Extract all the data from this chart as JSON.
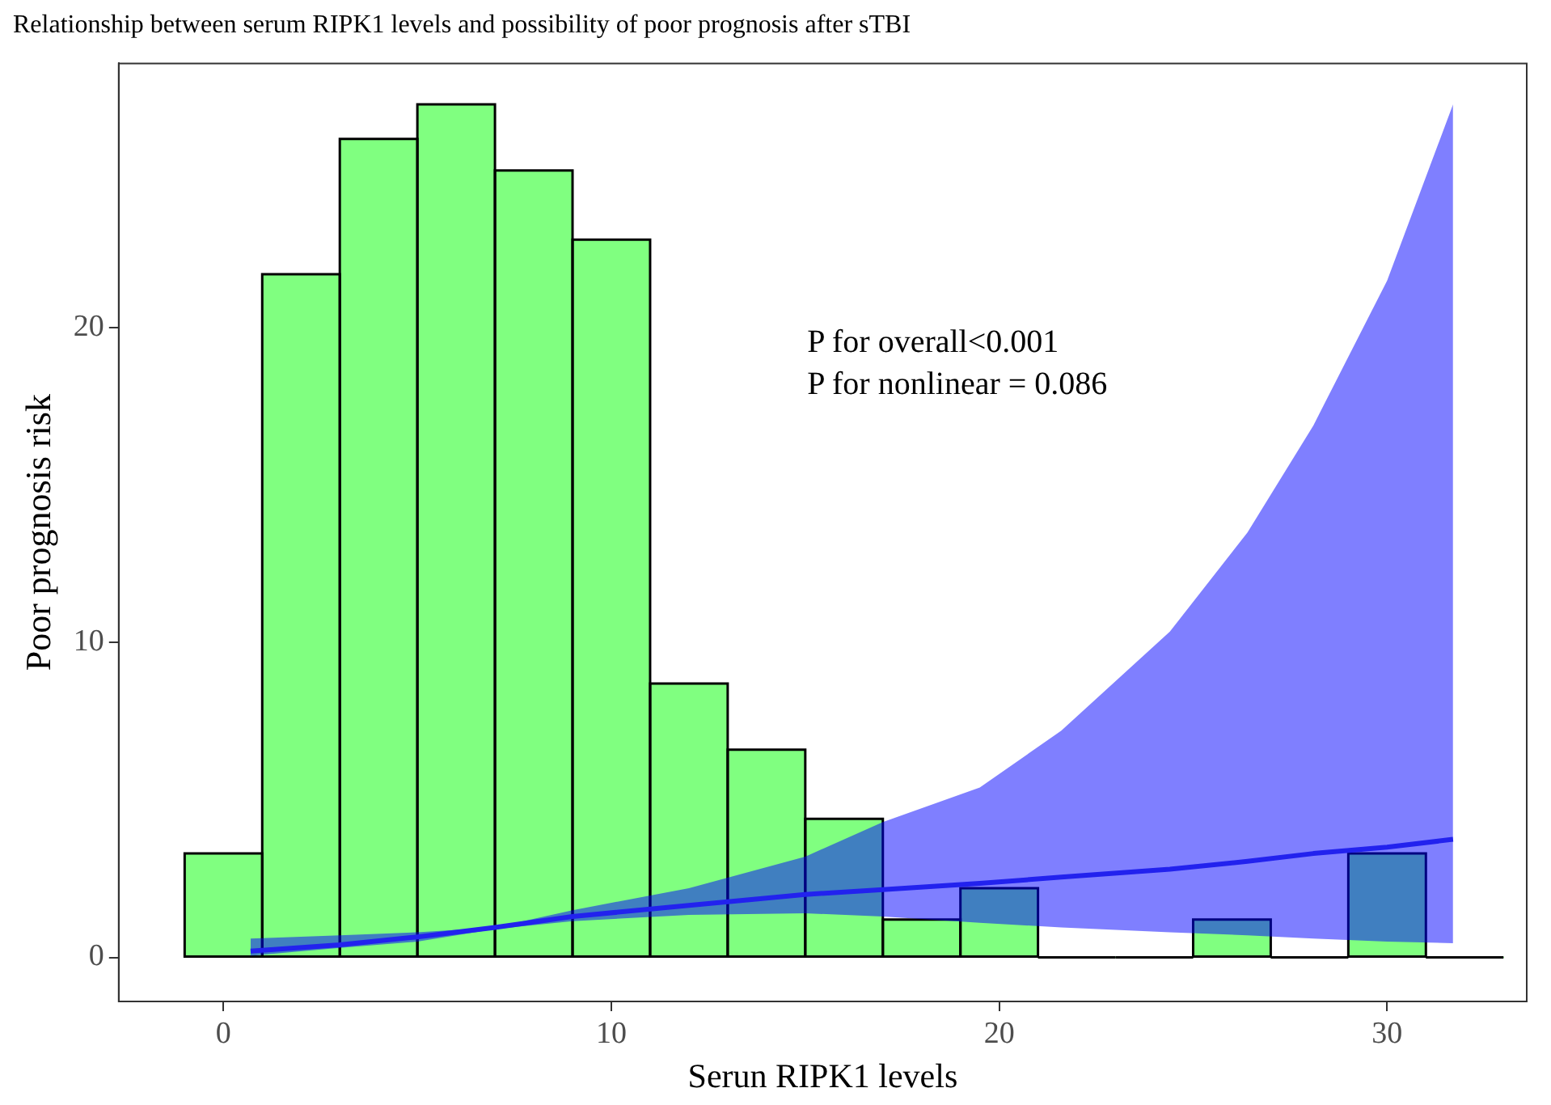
{
  "chart_data": {
    "type": "histogram",
    "title": "Relationship between serum RIPK1 levels and possibility of poor prognosis after sTBI",
    "xlabel": "Serun RIPK1 levels",
    "ylabel": "Poor prognosis risk",
    "bins": [
      -1,
      1,
      3,
      5,
      7,
      9,
      11,
      13,
      15,
      17,
      19,
      21,
      23,
      25,
      27,
      29,
      31,
      33
    ],
    "values": [
      3.3,
      21.7,
      26.0,
      27.1,
      25.0,
      22.8,
      8.7,
      6.6,
      4.4,
      1.2,
      2.2,
      0,
      0,
      1.2,
      0,
      3.3,
      0
    ],
    "color": "#80ff80",
    "series": [
      {
        "type": "line",
        "color": "#2222ee",
        "x": [
          0.7,
          3,
          5,
          7,
          9,
          12,
          15,
          17,
          19.5,
          21.6,
          24.4,
          26.4,
          28.1,
          30,
          31.7
        ],
        "values": [
          0.2,
          0.4,
          0.65,
          0.95,
          1.3,
          1.65,
          2.0,
          2.15,
          2.35,
          2.55,
          2.8,
          3.05,
          3.3,
          3.5,
          3.75
        ],
        "lower": [
          0.05,
          0.3,
          0.5,
          0.9,
          1.15,
          1.35,
          1.4,
          1.3,
          1.1,
          0.95,
          0.8,
          0.7,
          0.6,
          0.5,
          0.45
        ],
        "upper": [
          0.6,
          0.7,
          0.8,
          0.95,
          1.5,
          2.2,
          3.2,
          4.3,
          5.4,
          7.2,
          10.35,
          13.5,
          16.9,
          21.5,
          27.1
        ]
      }
    ],
    "xlim": [
      -2.7,
      33.6
    ],
    "ylim": [
      -1.4,
      28.4
    ],
    "xticks": [
      0,
      10,
      20,
      30
    ],
    "yticks": [
      0,
      10,
      20
    ],
    "annotations": [
      "P for overall<0.001",
      "P for nonlinear = 0.086"
    ],
    "grid": false,
    "legend": false
  }
}
